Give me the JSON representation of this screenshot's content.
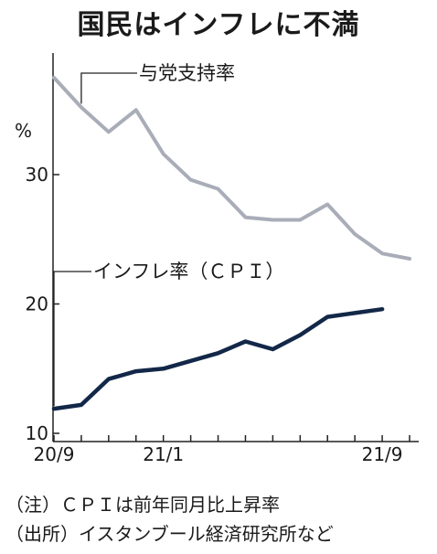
{
  "title": "国民はインフレに不満",
  "notes": [
    "（注）ＣＰＩは前年同月比上昇率",
    "（出所）イスタンブール経済研究所など"
  ],
  "chart_data": {
    "type": "line",
    "unit": "%",
    "x": [
      "20/9",
      "20/10",
      "20/11",
      "20/12",
      "21/1",
      "21/2",
      "21/3",
      "21/4",
      "21/5",
      "21/6",
      "21/7",
      "21/8",
      "21/9",
      "21/10"
    ],
    "x_tick_labels": [
      {
        "index": 0,
        "label": "20/9"
      },
      {
        "index": 4,
        "label": "21/1"
      },
      {
        "index": 12,
        "label": "21/9"
      }
    ],
    "ylim": [
      10,
      38
    ],
    "y_ticks": [
      10,
      20,
      30
    ],
    "series": [
      {
        "name": "与党支持率",
        "color": "#a9adb8",
        "values": [
          37.5,
          35.2,
          33.3,
          35.0,
          31.6,
          29.6,
          28.9,
          26.7,
          26.5,
          26.5,
          27.7,
          25.4,
          23.9,
          23.5
        ]
      },
      {
        "name": "インフレ率（ＣＰＩ）",
        "color": "#132848",
        "values": [
          11.9,
          12.2,
          14.2,
          14.8,
          15.0,
          15.6,
          16.2,
          17.1,
          16.5,
          17.6,
          19.0,
          19.3,
          19.6,
          null
        ]
      }
    ]
  }
}
